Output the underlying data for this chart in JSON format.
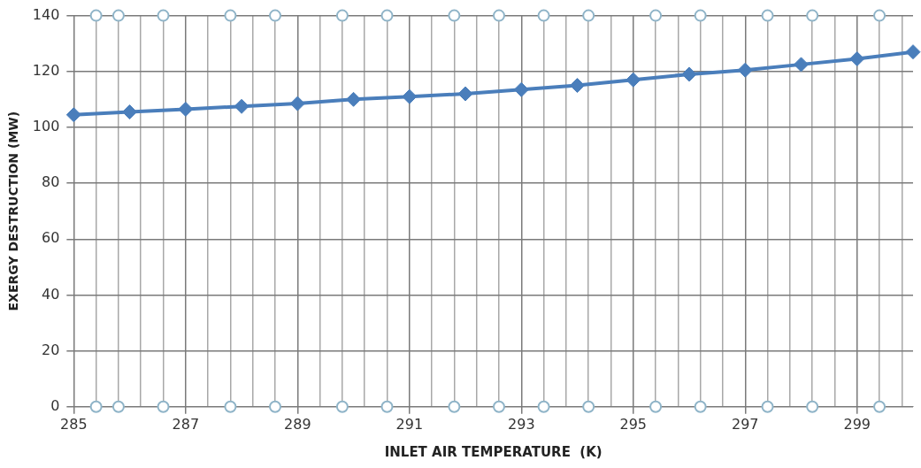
{
  "chart_data": {
    "type": "line",
    "xlabel": "INLET AIR TEMPERATURE  (K)",
    "ylabel": "EXERGY DESTRUCTION (MW)",
    "x": [
      285,
      286,
      287,
      288,
      289,
      290,
      291,
      292,
      293,
      294,
      295,
      296,
      297,
      298,
      299,
      300
    ],
    "series": [
      {
        "color": "#4a7ebb",
        "marker": "diamond",
        "values": [
          104.5,
          105.5,
          106.5,
          107.5,
          108.5,
          110,
          111,
          112,
          113.5,
          115,
          117,
          119,
          120.5,
          122.5,
          124.5,
          127
        ]
      },
      {
        "type": "scatter",
        "color": "#8fb4c8",
        "marker": "circle",
        "x": [
          285.4,
          285.8,
          286.6,
          287.8,
          288.6,
          289.8,
          290.6,
          291.8,
          292.6,
          293.4,
          294.2,
          295.4,
          296.2,
          297.4,
          298.2,
          299.4,
          285.4,
          285.8,
          286.6,
          287.8,
          288.6,
          289.8,
          290.6,
          291.8,
          292.6,
          293.4,
          294.2,
          295.4,
          296.2,
          297.4,
          298.2,
          299.4
        ],
        "values": [
          0,
          0,
          0,
          0,
          0,
          0,
          0,
          0,
          0,
          0,
          0,
          0,
          0,
          0,
          0,
          0,
          140,
          140,
          140,
          140,
          140,
          140,
          140,
          140,
          140,
          140,
          140,
          140,
          140,
          140,
          140,
          140
        ]
      }
    ],
    "xlim": [
      285,
      300
    ],
    "ylim": [
      0,
      140
    ],
    "xticks": [
      285,
      {
        "value": 285.4,
        "label": null
      },
      {
        "value": 285.8,
        "label": null
      },
      {
        "value": 286.2,
        "label": null
      },
      {
        "value": 286.6,
        "label": null
      },
      287,
      {
        "value": 287.4,
        "label": null
      },
      {
        "value": 287.8,
        "label": null
      },
      {
        "value": 288.2,
        "label": null
      },
      {
        "value": 288.6,
        "label": null
      },
      289,
      {
        "value": 289.4,
        "label": null
      },
      {
        "value": 289.8,
        "label": null
      },
      {
        "value": 290.2,
        "label": null
      },
      {
        "value": 290.6,
        "label": null
      },
      291,
      {
        "value": 291.4,
        "label": null
      },
      {
        "value": 291.8,
        "label": null
      },
      {
        "value": 292.2,
        "label": null
      },
      {
        "value": 292.6,
        "label": null
      },
      293,
      {
        "value": 293.4,
        "label": null
      },
      {
        "value": 293.8,
        "label": null
      },
      {
        "value": 294.2,
        "label": null
      },
      {
        "value": 294.6,
        "label": null
      },
      295,
      {
        "value": 295.4,
        "label": null
      },
      {
        "value": 295.8,
        "label": null
      },
      {
        "value": 296.2,
        "label": null
      },
      {
        "value": 296.6,
        "label": null
      },
      297,
      {
        "value": 297.4,
        "label": null
      },
      {
        "value": 297.8,
        "label": null
      },
      {
        "value": 298.2,
        "label": null
      },
      {
        "value": 298.6,
        "label": null
      },
      299,
      {
        "value": 299.4,
        "label": null
      },
      {
        "value": 299.8,
        "label": null
      }
    ],
    "yticks": [
      0,
      20,
      40,
      60,
      80,
      100,
      120,
      140
    ],
    "grid": true,
    "legend": false
  }
}
